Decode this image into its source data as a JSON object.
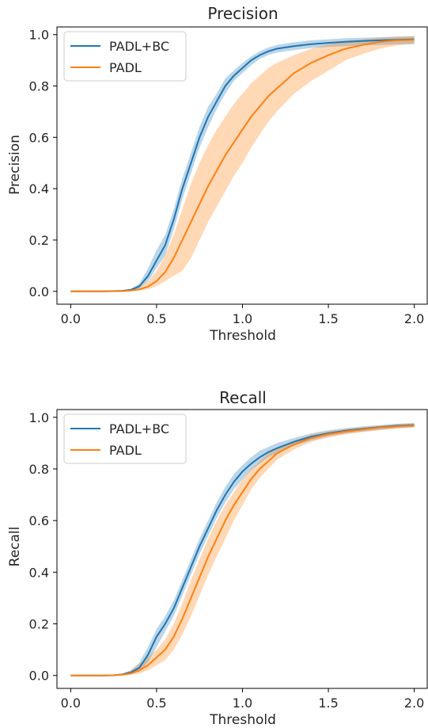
{
  "chart_data": [
    {
      "type": "line",
      "title": "Precision",
      "xlabel": "Threshold",
      "ylabel": "Precision",
      "xlim": [
        -0.08,
        2.08
      ],
      "ylim": [
        -0.05,
        1.03
      ],
      "xticks": [
        "0.0",
        "0.5",
        "1.0",
        "1.5",
        "2.0"
      ],
      "yticks": [
        "0.0",
        "0.2",
        "0.4",
        "0.6",
        "0.8",
        "1.0"
      ],
      "grid": false,
      "legend_position": "top-left",
      "series": [
        {
          "name": "PADL+BC",
          "color": "#1f77b4",
          "x": [
            0.0,
            0.2,
            0.3,
            0.35,
            0.4,
            0.45,
            0.5,
            0.55,
            0.6,
            0.65,
            0.7,
            0.75,
            0.8,
            0.85,
            0.9,
            0.95,
            1.0,
            1.05,
            1.1,
            1.15,
            1.2,
            1.3,
            1.4,
            1.5,
            1.6,
            1.7,
            1.8,
            1.9,
            2.0
          ],
          "y": [
            0.0,
            0.0,
            0.002,
            0.006,
            0.02,
            0.06,
            0.12,
            0.18,
            0.28,
            0.4,
            0.5,
            0.6,
            0.68,
            0.74,
            0.8,
            0.84,
            0.87,
            0.9,
            0.92,
            0.935,
            0.945,
            0.955,
            0.963,
            0.968,
            0.972,
            0.975,
            0.978,
            0.98,
            0.982
          ],
          "lower": [
            0.0,
            0.0,
            0.0,
            0.003,
            0.012,
            0.04,
            0.09,
            0.14,
            0.24,
            0.36,
            0.46,
            0.56,
            0.64,
            0.71,
            0.77,
            0.82,
            0.85,
            0.88,
            0.905,
            0.92,
            0.93,
            0.94,
            0.948,
            0.952,
            0.955,
            0.958,
            0.96,
            0.962,
            0.963
          ],
          "upper": [
            0.0,
            0.0,
            0.004,
            0.01,
            0.03,
            0.09,
            0.16,
            0.22,
            0.32,
            0.44,
            0.54,
            0.64,
            0.72,
            0.77,
            0.83,
            0.86,
            0.89,
            0.915,
            0.935,
            0.95,
            0.96,
            0.97,
            0.978,
            0.982,
            0.986,
            0.988,
            0.99,
            0.992,
            0.993
          ]
        },
        {
          "name": "PADL",
          "color": "#ff7f0e",
          "x": [
            0.0,
            0.2,
            0.3,
            0.35,
            0.4,
            0.45,
            0.5,
            0.55,
            0.6,
            0.65,
            0.7,
            0.75,
            0.8,
            0.85,
            0.9,
            0.95,
            1.0,
            1.05,
            1.1,
            1.15,
            1.2,
            1.3,
            1.4,
            1.5,
            1.6,
            1.7,
            1.8,
            1.9,
            2.0
          ],
          "y": [
            0.0,
            0.0,
            0.001,
            0.003,
            0.008,
            0.018,
            0.04,
            0.075,
            0.13,
            0.2,
            0.27,
            0.34,
            0.41,
            0.47,
            0.53,
            0.58,
            0.63,
            0.68,
            0.72,
            0.76,
            0.79,
            0.85,
            0.89,
            0.92,
            0.945,
            0.96,
            0.972,
            0.978,
            0.98
          ],
          "lower": [
            0.0,
            0.0,
            0.0,
            0.001,
            0.003,
            0.008,
            0.02,
            0.04,
            0.06,
            0.08,
            0.13,
            0.2,
            0.27,
            0.33,
            0.39,
            0.45,
            0.5,
            0.56,
            0.61,
            0.66,
            0.7,
            0.77,
            0.82,
            0.86,
            0.9,
            0.925,
            0.945,
            0.958,
            0.965
          ],
          "upper": [
            0.0,
            0.0,
            0.003,
            0.007,
            0.018,
            0.04,
            0.08,
            0.14,
            0.22,
            0.32,
            0.42,
            0.5,
            0.57,
            0.63,
            0.68,
            0.73,
            0.77,
            0.81,
            0.84,
            0.87,
            0.89,
            0.92,
            0.945,
            0.962,
            0.975,
            0.982,
            0.988,
            0.992,
            0.995
          ]
        }
      ]
    },
    {
      "type": "line",
      "title": "Recall",
      "xlabel": "Threshold",
      "ylabel": "Recall",
      "xlim": [
        -0.08,
        2.08
      ],
      "ylim": [
        -0.05,
        1.03
      ],
      "xticks": [
        "0.0",
        "0.5",
        "1.0",
        "1.5",
        "2.0"
      ],
      "yticks": [
        "0.0",
        "0.2",
        "0.4",
        "0.6",
        "0.8",
        "1.0"
      ],
      "grid": false,
      "legend_position": "top-left",
      "series": [
        {
          "name": "PADL+BC",
          "color": "#1f77b4",
          "x": [
            0.0,
            0.2,
            0.25,
            0.3,
            0.35,
            0.4,
            0.45,
            0.5,
            0.55,
            0.6,
            0.65,
            0.7,
            0.75,
            0.8,
            0.85,
            0.9,
            0.95,
            1.0,
            1.05,
            1.1,
            1.15,
            1.2,
            1.3,
            1.4,
            1.5,
            1.6,
            1.7,
            1.8,
            1.9,
            2.0
          ],
          "y": [
            0.0,
            0.0,
            0.001,
            0.004,
            0.012,
            0.03,
            0.08,
            0.15,
            0.2,
            0.26,
            0.34,
            0.42,
            0.5,
            0.57,
            0.64,
            0.7,
            0.75,
            0.79,
            0.82,
            0.845,
            0.865,
            0.88,
            0.905,
            0.925,
            0.938,
            0.948,
            0.955,
            0.962,
            0.967,
            0.97
          ],
          "lower": [
            0.0,
            0.0,
            0.0,
            0.002,
            0.006,
            0.015,
            0.05,
            0.11,
            0.17,
            0.23,
            0.31,
            0.39,
            0.47,
            0.54,
            0.61,
            0.67,
            0.72,
            0.76,
            0.795,
            0.82,
            0.845,
            0.86,
            0.89,
            0.91,
            0.926,
            0.937,
            0.945,
            0.952,
            0.958,
            0.962
          ],
          "upper": [
            0.0,
            0.0,
            0.002,
            0.007,
            0.02,
            0.05,
            0.11,
            0.18,
            0.23,
            0.29,
            0.37,
            0.45,
            0.53,
            0.6,
            0.67,
            0.73,
            0.78,
            0.815,
            0.845,
            0.87,
            0.885,
            0.9,
            0.92,
            0.938,
            0.95,
            0.958,
            0.965,
            0.97,
            0.975,
            0.978
          ]
        },
        {
          "name": "PADL",
          "color": "#ff7f0e",
          "x": [
            0.0,
            0.2,
            0.25,
            0.3,
            0.35,
            0.4,
            0.45,
            0.5,
            0.55,
            0.6,
            0.65,
            0.7,
            0.75,
            0.8,
            0.85,
            0.9,
            0.95,
            1.0,
            1.05,
            1.1,
            1.15,
            1.2,
            1.3,
            1.4,
            1.5,
            1.6,
            1.7,
            1.8,
            1.9,
            2.0
          ],
          "y": [
            0.0,
            0.0,
            0.001,
            0.003,
            0.008,
            0.02,
            0.04,
            0.07,
            0.1,
            0.15,
            0.22,
            0.3,
            0.38,
            0.46,
            0.53,
            0.6,
            0.66,
            0.71,
            0.76,
            0.8,
            0.83,
            0.86,
            0.895,
            0.92,
            0.935,
            0.945,
            0.953,
            0.96,
            0.965,
            0.968
          ],
          "lower": [
            0.0,
            0.0,
            0.0,
            0.001,
            0.003,
            0.008,
            0.02,
            0.04,
            0.06,
            0.1,
            0.16,
            0.23,
            0.31,
            0.39,
            0.46,
            0.53,
            0.6,
            0.66,
            0.72,
            0.765,
            0.8,
            0.835,
            0.875,
            0.905,
            0.922,
            0.934,
            0.943,
            0.95,
            0.956,
            0.96
          ],
          "upper": [
            0.0,
            0.0,
            0.003,
            0.008,
            0.02,
            0.045,
            0.07,
            0.1,
            0.14,
            0.2,
            0.28,
            0.37,
            0.45,
            0.53,
            0.6,
            0.66,
            0.71,
            0.76,
            0.8,
            0.83,
            0.86,
            0.88,
            0.91,
            0.932,
            0.946,
            0.955,
            0.962,
            0.968,
            0.973,
            0.976
          ]
        }
      ]
    }
  ]
}
